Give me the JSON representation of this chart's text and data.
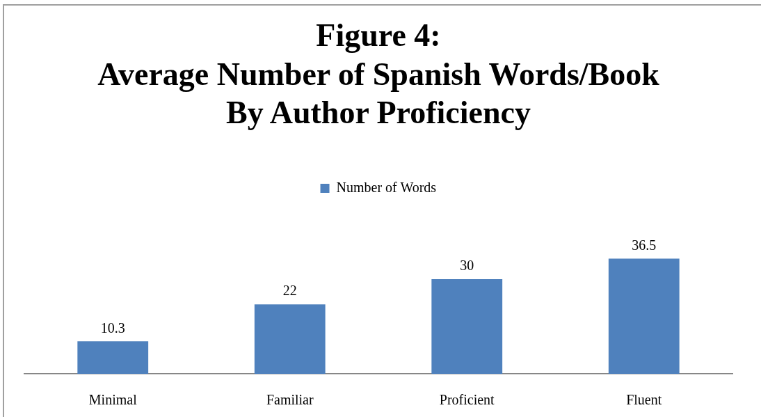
{
  "chart_data": {
    "type": "bar",
    "title": "Figure 4:\nAverage Number of Spanish Words/Book\nBy Author Proficiency",
    "categories": [
      "Minimal",
      "Familiar",
      "Proficient",
      "Fluent"
    ],
    "series": [
      {
        "name": "Number of Words",
        "color": "#4f81bd",
        "values": [
          10.3,
          22,
          30,
          36.5
        ]
      }
    ],
    "data_labels": true,
    "legend": "top"
  }
}
